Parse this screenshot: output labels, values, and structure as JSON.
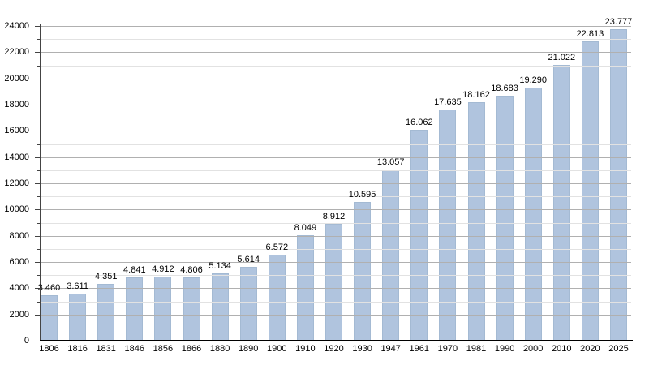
{
  "chart_data": {
    "type": "bar",
    "title": "",
    "xlabel": "",
    "ylabel": "",
    "categories": [
      "1806",
      "1816",
      "1831",
      "1846",
      "1856",
      "1866",
      "1880",
      "1890",
      "1900",
      "1910",
      "1920",
      "1930",
      "1947",
      "1961",
      "1970",
      "1981",
      "1990",
      "2000",
      "2010",
      "2020",
      "2025"
    ],
    "values": [
      3460,
      3611,
      4351,
      4841,
      4912,
      4806,
      5134,
      5614,
      6572,
      8049,
      8912,
      10595,
      13057,
      16062,
      17635,
      18162,
      18683,
      19290,
      21022,
      22813,
      23777
    ],
    "bar_value_labels": [
      "3.460",
      "3.611",
      "4.351",
      "4.841",
      "4.912",
      "4.806",
      "5.134",
      "5.614",
      "6.572",
      "8.049",
      "8.912",
      "10.595",
      "13.057",
      "16.062",
      "17.635",
      "18.162",
      "18.683",
      "19.290",
      "21.022",
      "22.813",
      "23.777"
    ],
    "ylim": [
      0,
      24000
    ],
    "y_major_step": 2000,
    "y_minor_step": 1000,
    "y_tick_labels": [
      "0",
      "2000",
      "4000",
      "6000",
      "8000",
      "10000",
      "12000",
      "14000",
      "16000",
      "18000",
      "20000",
      "22000",
      "24000"
    ],
    "grid": "horizontal major and minor, drawn over bars",
    "legend_position": "none",
    "colors": {
      "background": "#ffffff",
      "bar_fill": "#b0c4de",
      "bar_border": "#a4bad3",
      "grid_major": "#b0b0b0",
      "grid_minor": "#e2e2e2",
      "axis_y": "#444444",
      "axis_x": "#000000",
      "text": "#000000"
    }
  }
}
